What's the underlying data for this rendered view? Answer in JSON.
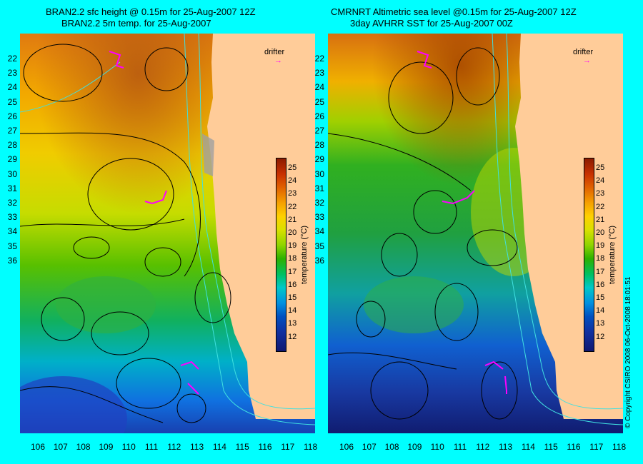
{
  "left_panel": {
    "title_line1": "BRAN2.2 sfc height @ 0.15m for 25-Aug-2007 12Z",
    "title_line2": "BRAN2.2 5m temp. for 25-Aug-2007"
  },
  "right_panel": {
    "title_line1": "CMRNRT Altimetric sea level  @0.15m  for 25-Aug-2007 12Z",
    "title_line2": "3day AVHRR SST for 25-Aug-2007 00Z"
  },
  "y_labels": [
    "22",
    "23",
    "24",
    "25",
    "26",
    "27",
    "28",
    "29",
    "30",
    "31",
    "32",
    "33",
    "34",
    "35",
    "36"
  ],
  "x_labels": [
    "106",
    "107",
    "108",
    "109",
    "110",
    "111",
    "112",
    "113",
    "114",
    "115",
    "116",
    "117",
    "118"
  ],
  "drifter_label": "drifter",
  "colorbar": {
    "title": "temperature (°C)",
    "ticks": [
      "25",
      "24",
      "23",
      "22",
      "21",
      "20",
      "19",
      "18",
      "17",
      "16",
      "15",
      "14",
      "13",
      "12"
    ]
  },
  "copyright": "© Copyright CSIRO 2008    06-Oct-2008 18:01:51",
  "colors": {
    "background": "#00ffff",
    "land": "#ffcc99",
    "contour": "#000000",
    "isobath": "#40e0e0",
    "drifter_track": "#ff00ff"
  }
}
